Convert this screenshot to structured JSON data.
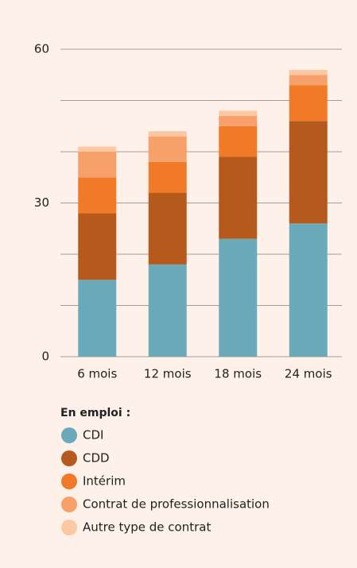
{
  "chart_data": {
    "type": "stacked_bar",
    "categories": [
      "6 mois",
      "12 mois",
      "18 mois",
      "24 mois"
    ],
    "legend_title": "En emploi :",
    "series": [
      {
        "name": "CDI",
        "color": "#6aaabb",
        "values": [
          15,
          18,
          23,
          26
        ]
      },
      {
        "name": "CDD",
        "color": "#b55a1c",
        "values": [
          13,
          14,
          16,
          20
        ]
      },
      {
        "name": "Intérim",
        "color": "#f17a28",
        "values": [
          7,
          6,
          6,
          7
        ]
      },
      {
        "name": "Contrat de professionnalisation",
        "color": "#f8a06a",
        "values": [
          5,
          5,
          2,
          2
        ]
      },
      {
        "name": "Autre type de contrat",
        "color": "#fcc8a4",
        "values": [
          1,
          1,
          1,
          1
        ]
      }
    ],
    "ylim": [
      0,
      60
    ],
    "yticks": [
      0,
      30,
      60
    ],
    "minor_yticks": [
      10,
      20,
      40,
      50
    ],
    "grid": true
  }
}
